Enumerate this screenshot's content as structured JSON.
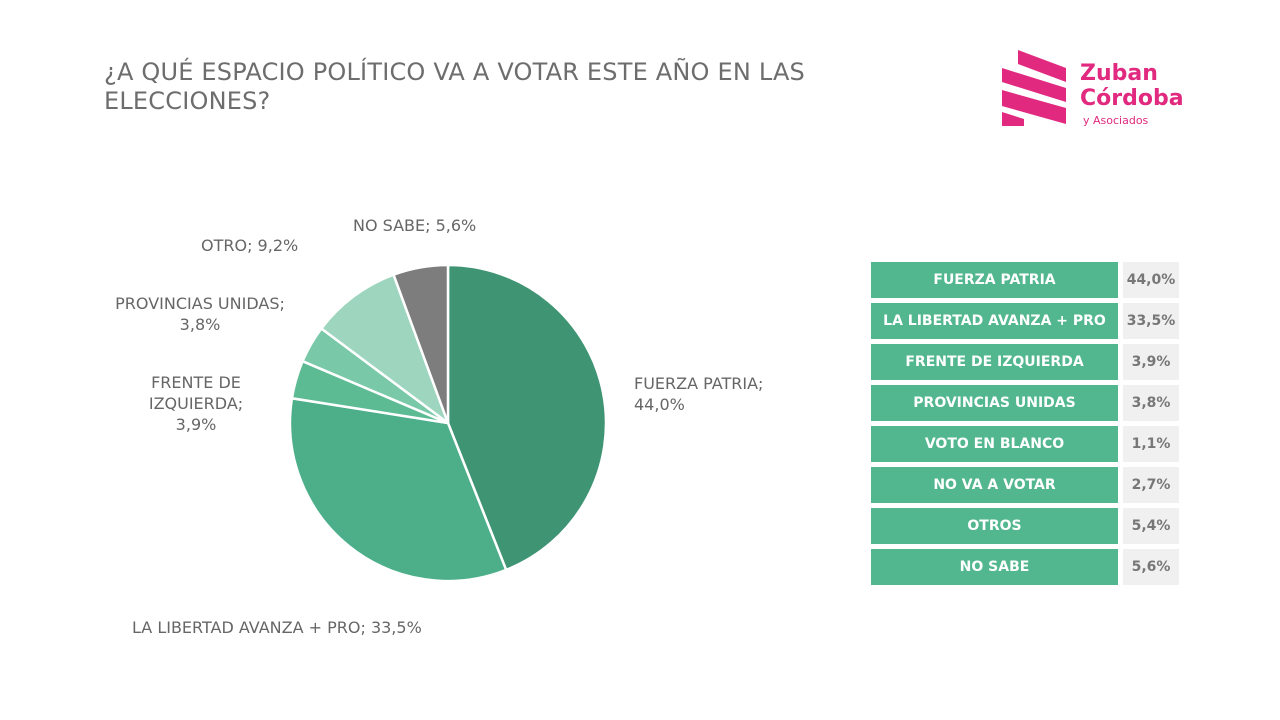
{
  "title": "¿A QUÉ ESPACIO POLÍTICO VA A VOTAR ESTE AÑO EN LAS ELECCIONES?",
  "logo": {
    "line1": "Zuban",
    "line2": "Córdoba",
    "line3": "y Asociados",
    "color": "#e0297f"
  },
  "chart_data": {
    "type": "pie",
    "title": "¿A QUÉ ESPACIO POLÍTICO VA A VOTAR ESTE AÑO EN LAS ELECCIONES?",
    "slices": [
      {
        "name": "FUERZA PATRIA",
        "value": 44.0,
        "label": "FUERZA PATRIA; 44,0%",
        "color": "#3f9474"
      },
      {
        "name": "LA LIBERTAD AVANZA + PRO",
        "value": 33.5,
        "label": "LA LIBERTAD AVANZA + PRO; 33,5%",
        "color": "#4caf89"
      },
      {
        "name": "FRENTE DE IZQUIERDA",
        "value": 3.9,
        "label": "FRENTE DE IZQUIERDA; 3,9%",
        "color": "#5dbb94"
      },
      {
        "name": "PROVINCIAS UNIDAS",
        "value": 3.8,
        "label": "PROVINCIAS UNIDAS; 3,8%",
        "color": "#79c9a8"
      },
      {
        "name": "OTRO",
        "value": 9.2,
        "label": "OTRO; 9,2%",
        "color": "#9dd5bf"
      },
      {
        "name": "NO SABE",
        "value": 5.6,
        "label": "NO SABE; 5,6%",
        "color": "#7d7d7d"
      }
    ],
    "start": "top",
    "direction": "clockwise"
  },
  "table": [
    {
      "name": "FUERZA PATRIA",
      "value": "44,0%"
    },
    {
      "name": "LA LIBERTAD AVANZA + PRO",
      "value": "33,5%"
    },
    {
      "name": "FRENTE DE IZQUIERDA",
      "value": "3,9%"
    },
    {
      "name": "PROVINCIAS UNIDAS",
      "value": "3,8%"
    },
    {
      "name": "VOTO EN BLANCO",
      "value": "1,1%"
    },
    {
      "name": "NO VA A VOTAR",
      "value": "2,7%"
    },
    {
      "name": "OTROS",
      "value": "5,4%"
    },
    {
      "name": "NO SABE",
      "value": "5,6%"
    }
  ]
}
